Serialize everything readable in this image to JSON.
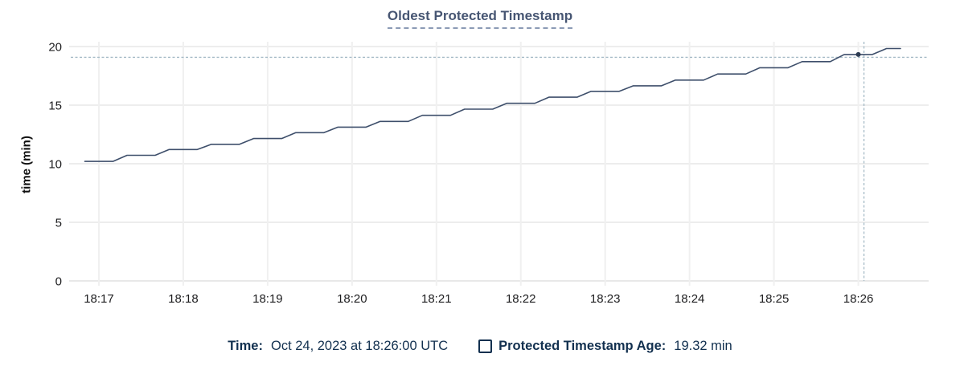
{
  "title": "Oldest Protected Timestamp",
  "y_axis_title": "time (min)",
  "legend": {
    "time_label": "Time:",
    "time_value": "Oct 24, 2023 at 18:26:00 UTC",
    "checkbox_icon": "checkbox-unchecked",
    "series_label": "Protected Timestamp Age:",
    "series_value": "19.32 min"
  },
  "colors": {
    "line": "#3e4f6b",
    "highlight_dot": "#2c3b52",
    "crosshair": "#a5bac6",
    "grid_horizontal": "#e7e7e7",
    "grid_vertical": "#f0f0f0",
    "axis_baseline": "#e0e0e0",
    "title_text": "#475673",
    "title_underline": "#8b9ab5",
    "legend_text": "#12304f",
    "axis_tick_text": "#1d1d1f"
  },
  "chart_data": {
    "type": "line",
    "title": "Oldest Protected Timestamp",
    "xlabel": "",
    "ylabel": "time (min)",
    "ylim": [
      0,
      20
    ],
    "y_ticks": [
      0,
      5,
      10,
      15,
      20
    ],
    "x_ticks": [
      "18:17",
      "18:18",
      "18:19",
      "18:20",
      "18:21",
      "18:22",
      "18:23",
      "18:24",
      "18:25",
      "18:26"
    ],
    "x_domain": [
      "18:16:40",
      "18:26:50"
    ],
    "grid": true,
    "legend_position": "bottom",
    "series": [
      {
        "name": "Protected Timestamp Age",
        "unit": "min",
        "x": [
          "18:16:50",
          "18:17:00",
          "18:17:10",
          "18:17:20",
          "18:17:30",
          "18:17:40",
          "18:17:50",
          "18:18:00",
          "18:18:10",
          "18:18:20",
          "18:18:30",
          "18:18:40",
          "18:18:50",
          "18:19:00",
          "18:19:10",
          "18:19:20",
          "18:19:30",
          "18:19:40",
          "18:19:50",
          "18:20:00",
          "18:20:10",
          "18:20:20",
          "18:20:30",
          "18:20:40",
          "18:20:50",
          "18:21:00",
          "18:21:10",
          "18:21:20",
          "18:21:30",
          "18:21:40",
          "18:21:50",
          "18:22:00",
          "18:22:10",
          "18:22:20",
          "18:22:30",
          "18:22:40",
          "18:22:50",
          "18:23:00",
          "18:23:10",
          "18:23:20",
          "18:23:30",
          "18:23:40",
          "18:23:50",
          "18:24:00",
          "18:24:10",
          "18:24:20",
          "18:24:30",
          "18:24:40",
          "18:24:50",
          "18:25:00",
          "18:25:10",
          "18:25:20",
          "18:25:30",
          "18:25:40",
          "18:25:50",
          "18:26:00",
          "18:26:10",
          "18:26:20",
          "18:26:30"
        ],
        "y": [
          10.2,
          10.2,
          10.2,
          10.72,
          10.72,
          10.72,
          11.21,
          11.21,
          11.21,
          11.66,
          11.66,
          11.66,
          12.15,
          12.15,
          12.15,
          12.65,
          12.65,
          12.65,
          13.12,
          13.12,
          13.12,
          13.61,
          13.61,
          13.61,
          14.13,
          14.13,
          14.13,
          14.66,
          14.66,
          14.66,
          15.16,
          15.16,
          15.16,
          15.68,
          15.68,
          15.68,
          16.18,
          16.18,
          16.18,
          16.65,
          16.65,
          16.65,
          17.14,
          17.14,
          17.14,
          17.66,
          17.66,
          17.66,
          18.19,
          18.19,
          18.19,
          18.71,
          18.71,
          18.71,
          19.32,
          19.32,
          19.32,
          19.83,
          19.83
        ]
      }
    ],
    "highlight_point": {
      "x": "18:26:00",
      "y": 19.32
    }
  }
}
